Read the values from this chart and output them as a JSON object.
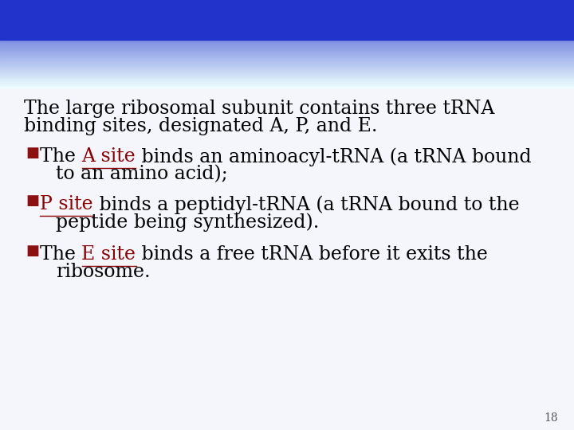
{
  "header_color_top": "#2233cc",
  "header_color_fade": "#aabbee",
  "slide_bg": "#f5f6fc",
  "text_color": "#000000",
  "dark_red": "#8B0000",
  "bullet_color": "#8B1010",
  "page_num": "18",
  "intro_text_line1": "The large ribosomal subunit contains three tRNA",
  "intro_text_line2": "binding sites, designated A, P, and E.",
  "bullet1_line1_pre": "The ",
  "bullet1_line1_link": "A site",
  "bullet1_line1_post": " binds an aminoacyl-tRNA (a tRNA bound",
  "bullet1_line2": "to an amino acid);",
  "bullet2_line1_link": "P site",
  "bullet2_line1_post": " binds a peptidyl-tRNA (a tRNA bound to the",
  "bullet2_line2": "peptide being synthesized).",
  "bullet3_line1_pre": "The ",
  "bullet3_line1_link": "E site",
  "bullet3_line1_post": " binds a free tRNA before it exits the",
  "bullet3_line2": "ribosome.",
  "font_size_intro": 17,
  "font_size_bullet": 17,
  "font_size_page": 10
}
